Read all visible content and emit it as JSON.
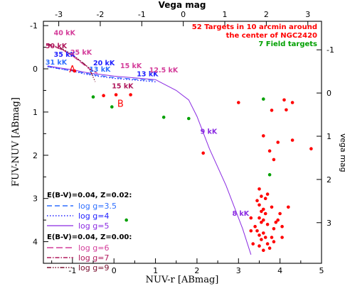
{
  "chart_data": {
    "type": "scatter",
    "xlabel": "NUV-r [ABmag]",
    "ylabel": "FUV-NUV [ABmag]",
    "top_xlabel": "Vega mag",
    "right_ylabel": "Vega mag",
    "xlim": [
      -1.7,
      5
    ],
    "ylim": [
      4.5,
      -1.1
    ],
    "x_ticks": [
      -1,
      0,
      1,
      2,
      3,
      4,
      5
    ],
    "y_ticks": [
      -1,
      0,
      1,
      2,
      3,
      4
    ],
    "top_ticks": [
      {
        "label": "-3",
        "x": -1.33
      },
      {
        "label": "-2",
        "x": -0.33
      },
      {
        "label": "-1",
        "x": 0.67
      },
      {
        "label": "0",
        "x": 1.67
      },
      {
        "label": "1",
        "x": 2.67
      },
      {
        "label": "2",
        "x": 3.67
      },
      {
        "label": "3",
        "x": 4.67
      }
    ],
    "right_ticks": [
      {
        "label": "-1",
        "y": -0.44
      },
      {
        "label": "0",
        "y": 0.56
      },
      {
        "label": "1",
        "y": 1.56
      },
      {
        "label": "2",
        "y": 2.56
      },
      {
        "label": "3",
        "y": 3.56
      }
    ],
    "grid": false,
    "legend_header": [
      {
        "text": "52 Targets in 10 arcmin around",
        "color": "#ff0000"
      },
      {
        "text": "the center of NGC2420",
        "color": "#ff0000"
      },
      {
        "text": "7 Field targets",
        "color": "#00a000"
      }
    ],
    "targets": {
      "color": "#ff0000",
      "points": [
        [
          -0.95,
          0.05
        ],
        [
          -0.25,
          0.62
        ],
        [
          0.05,
          0.6
        ],
        [
          0.4,
          0.6
        ],
        [
          2.15,
          1.95
        ],
        [
          3.0,
          0.78
        ],
        [
          3.6,
          1.55
        ],
        [
          3.8,
          0.96
        ],
        [
          3.85,
          2.1
        ],
        [
          3.75,
          1.9
        ],
        [
          3.95,
          1.7
        ],
        [
          4.1,
          0.72
        ],
        [
          4.15,
          0.95
        ],
        [
          4.3,
          0.78
        ],
        [
          4.3,
          1.65
        ],
        [
          4.75,
          1.85
        ],
        [
          3.5,
          2.78
        ],
        [
          3.55,
          2.95
        ],
        [
          3.65,
          3.0
        ],
        [
          3.7,
          2.9
        ],
        [
          3.45,
          3.05
        ],
        [
          3.5,
          3.15
        ],
        [
          3.55,
          3.3
        ],
        [
          3.6,
          3.25
        ],
        [
          3.65,
          3.35
        ],
        [
          3.8,
          3.2
        ],
        [
          3.5,
          3.45
        ],
        [
          3.55,
          3.55
        ],
        [
          3.6,
          3.5
        ],
        [
          3.7,
          3.6
        ],
        [
          3.3,
          3.45
        ],
        [
          3.4,
          3.65
        ],
        [
          3.45,
          3.75
        ],
        [
          3.5,
          3.85
        ],
        [
          3.55,
          3.95
        ],
        [
          3.6,
          3.8
        ],
        [
          3.65,
          3.9
        ],
        [
          3.7,
          4.05
        ],
        [
          3.85,
          3.7
        ],
        [
          3.9,
          3.55
        ],
        [
          3.95,
          3.5
        ],
        [
          4.05,
          3.65
        ],
        [
          4.0,
          3.35
        ],
        [
          4.2,
          3.2
        ],
        [
          3.35,
          4.05
        ],
        [
          3.5,
          4.1
        ],
        [
          3.6,
          4.2
        ],
        [
          3.75,
          4.15
        ],
        [
          3.8,
          3.9
        ],
        [
          4.05,
          3.9
        ],
        [
          3.85,
          4.0
        ],
        [
          3.3,
          3.75
        ]
      ]
    },
    "field": {
      "color": "#00a000",
      "points": [
        [
          -0.5,
          0.65
        ],
        [
          -0.05,
          0.88
        ],
        [
          1.2,
          1.12
        ],
        [
          1.8,
          1.15
        ],
        [
          3.6,
          0.7
        ],
        [
          3.75,
          2.45
        ],
        [
          0.3,
          3.5
        ]
      ]
    },
    "models": [
      {
        "label": "log g=3.5",
        "color": "#2f6fff",
        "dash": "7,4",
        "width": 1.2,
        "points": [
          [
            -1.6,
            -0.05
          ],
          [
            -1.3,
            0.0
          ],
          [
            -1.0,
            0.05
          ],
          [
            -0.7,
            0.1
          ],
          [
            -0.4,
            0.15
          ],
          [
            0.0,
            0.2
          ],
          [
            0.5,
            0.24
          ],
          [
            1.0,
            0.27
          ]
        ]
      },
      {
        "label": "log g=4",
        "color": "#2020ff",
        "dash": "1.5,2.5",
        "width": 1.3,
        "points": [
          [
            -1.6,
            -0.05
          ],
          [
            -1.3,
            0.0
          ],
          [
            -1.0,
            0.05
          ],
          [
            -0.7,
            0.12
          ],
          [
            -0.4,
            0.17
          ],
          [
            0.0,
            0.22
          ],
          [
            0.5,
            0.26
          ],
          [
            1.0,
            0.3
          ]
        ]
      },
      {
        "label": "log g=5",
        "color": "#8a2be2",
        "dash": "",
        "width": 1.0,
        "points": [
          [
            -1.6,
            -0.07
          ],
          [
            -1.3,
            -0.02
          ],
          [
            -1.0,
            0.02
          ],
          [
            -0.7,
            0.08
          ],
          [
            -0.4,
            0.12
          ],
          [
            0.0,
            0.17
          ],
          [
            0.5,
            0.21
          ],
          [
            1.0,
            0.25
          ],
          [
            1.1,
            0.3
          ],
          [
            1.5,
            0.5
          ],
          [
            1.8,
            0.72
          ],
          [
            2.0,
            1.1
          ],
          [
            2.3,
            1.85
          ],
          [
            2.7,
            2.7
          ],
          [
            3.1,
            3.7
          ],
          [
            3.3,
            4.3
          ]
        ]
      },
      {
        "label": "log g=6",
        "color": "#d43d9a",
        "dash": "9,4",
        "width": 1.2,
        "points": [
          [
            -1.6,
            -0.55
          ],
          [
            -1.4,
            -0.5
          ],
          [
            -1.2,
            -0.42
          ],
          [
            -1.0,
            -0.3
          ],
          [
            -0.8,
            -0.15
          ],
          [
            -0.6,
            0.0
          ],
          [
            -0.4,
            0.1
          ]
        ]
      },
      {
        "label": "log g=7",
        "color": "#b0185c",
        "dash": "6,2,1.5,2",
        "width": 1.2,
        "points": [
          [
            -1.6,
            -0.56
          ],
          [
            -1.4,
            -0.5
          ],
          [
            -1.2,
            -0.42
          ],
          [
            -1.0,
            -0.31
          ],
          [
            -0.8,
            -0.17
          ],
          [
            -0.6,
            -0.02
          ],
          [
            -0.45,
            0.08
          ]
        ]
      },
      {
        "label": "log g=9",
        "color": "#7a1030",
        "dash": "6,2,1.5,2,1.5,2,1.5,2",
        "width": 1.2,
        "points": [
          [
            -1.6,
            -0.58
          ],
          [
            -1.4,
            -0.52
          ],
          [
            -1.2,
            -0.44
          ],
          [
            -1.0,
            -0.33
          ],
          [
            -0.8,
            -0.18
          ],
          [
            -0.6,
            -0.02
          ],
          [
            -0.45,
            0.3
          ]
        ]
      }
    ],
    "legend_groups": [
      {
        "title": "E(B-V)=0.04, Z=0.02:",
        "items": [
          0,
          1,
          2
        ]
      },
      {
        "title": "E(B-V)=0.04, Z=0.00:",
        "items": [
          3,
          4,
          5
        ]
      }
    ],
    "annotations": [
      {
        "text": "40 kK",
        "x": -1.45,
        "y": -0.78,
        "color": "#d43d9a"
      },
      {
        "text": "50 kK",
        "x": -1.65,
        "y": -0.48,
        "color": "#b0185c"
      },
      {
        "text": "35 kK",
        "x": -1.45,
        "y": -0.28,
        "color": "#2020ff"
      },
      {
        "text": "25 kK",
        "x": -1.05,
        "y": -0.33,
        "color": "#d43d9a"
      },
      {
        "text": "31 kK",
        "x": -1.65,
        "y": -0.1,
        "color": "#2f6fff"
      },
      {
        "text": "A",
        "x": -1.08,
        "y": 0.08,
        "color": "#ff0000",
        "size": 13
      },
      {
        "text": "20 kK",
        "x": -0.5,
        "y": -0.08,
        "color": "#2020ff"
      },
      {
        "text": "13 kK",
        "x": -0.6,
        "y": 0.07,
        "color": "#2f6fff"
      },
      {
        "text": "15 kK",
        "x": 0.15,
        "y": -0.02,
        "color": "#d43d9a"
      },
      {
        "text": "13 kK",
        "x": 0.55,
        "y": 0.17,
        "color": "#2020ff"
      },
      {
        "text": "12.5 kK",
        "x": 0.85,
        "y": 0.08,
        "color": "#d43d9a"
      },
      {
        "text": "15 kK",
        "x": -0.05,
        "y": 0.45,
        "color": "#b0185c"
      },
      {
        "text": "B",
        "x": 0.08,
        "y": 0.88,
        "color": "#ff0000",
        "size": 13
      },
      {
        "text": "9 kK",
        "x": 2.08,
        "y": 1.5,
        "color": "#8a2be2"
      },
      {
        "text": "8 kK",
        "x": 2.85,
        "y": 3.4,
        "color": "#8a2be2"
      }
    ]
  }
}
